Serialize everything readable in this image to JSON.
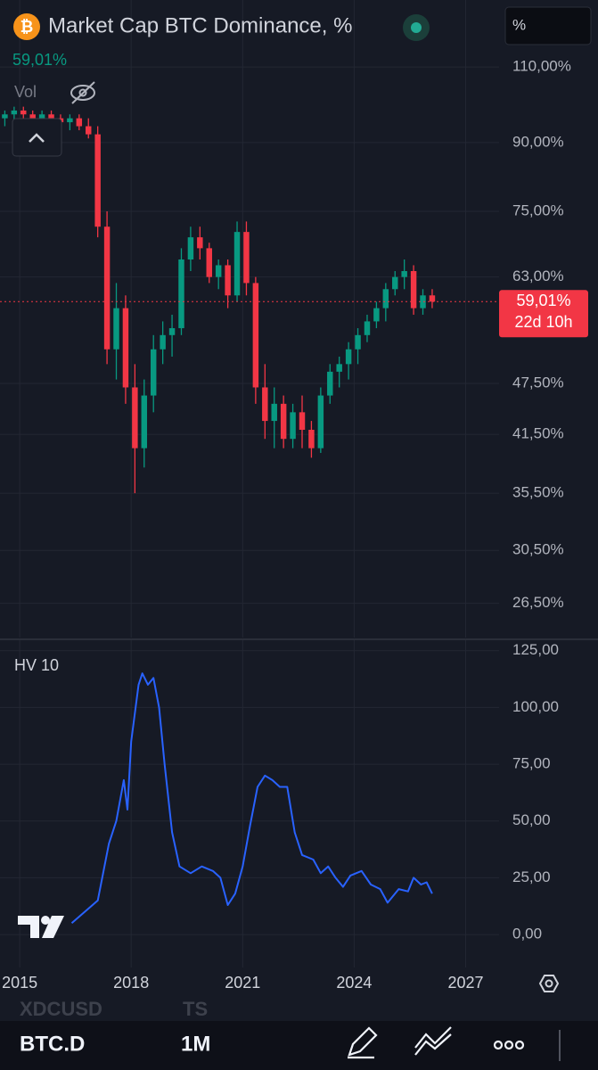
{
  "header": {
    "title": "Market Cap BTC Dominance, %",
    "scale_button": "%",
    "volume_label": "Vol"
  },
  "chart_data": [
    {
      "type": "candlestick",
      "x": [
        2014.6,
        2014.85,
        2015.1,
        2015.35,
        2015.6,
        2015.85,
        2016.1,
        2016.35,
        2016.6,
        2016.85,
        2017.1,
        2017.35,
        2017.6,
        2017.85,
        2018.1,
        2018.35,
        2018.6,
        2018.85,
        2019.1,
        2019.35,
        2019.6,
        2019.85,
        2020.1,
        2020.35,
        2020.6,
        2020.85,
        2021.1,
        2021.35,
        2021.6,
        2021.85,
        2022.1,
        2022.35,
        2022.6,
        2022.85,
        2023.1,
        2023.35,
        2023.6,
        2023.85,
        2024.1,
        2024.35,
        2024.6,
        2024.85,
        2025.1,
        2025.35,
        2025.6,
        2025.85,
        2026.1
      ],
      "open": [
        96,
        97,
        98,
        97,
        96,
        97,
        96,
        95,
        96,
        94,
        92,
        72,
        52,
        58,
        47,
        40,
        46,
        52,
        54,
        55,
        66,
        70,
        68,
        63,
        65,
        60,
        71,
        62,
        47,
        43,
        45,
        41,
        44,
        42,
        40,
        46,
        49,
        50,
        52,
        54,
        56,
        58,
        61,
        63,
        64,
        58,
        60
      ],
      "high": [
        98,
        99,
        99,
        98,
        98,
        98,
        97,
        97,
        97,
        96,
        94,
        75,
        62,
        60,
        50,
        48,
        54,
        56,
        57,
        68,
        72,
        72,
        69,
        66,
        66,
        73,
        73,
        63,
        50,
        47,
        46,
        45,
        46,
        43,
        47,
        50,
        51,
        53,
        55,
        57,
        59,
        62,
        64,
        66,
        65,
        61,
        61
      ],
      "low": [
        94,
        95,
        96,
        95,
        94,
        95,
        94,
        93,
        93,
        91,
        70,
        50,
        48,
        45,
        35.5,
        38,
        44,
        50,
        51,
        54,
        64,
        66,
        62,
        61,
        58,
        59,
        60,
        45,
        41,
        40,
        40,
        40,
        40,
        39,
        39.5,
        45,
        47,
        48,
        50,
        53,
        55,
        56,
        60,
        61,
        57,
        57,
        58
      ],
      "close": [
        97,
        98,
        97,
        96,
        97,
        96,
        95,
        96,
        94,
        92,
        72,
        52,
        58,
        47,
        40,
        46,
        52,
        54,
        55,
        66,
        70,
        68,
        63,
        65,
        60,
        71,
        62,
        47,
        43,
        45,
        41,
        44,
        42,
        40,
        46,
        49,
        50,
        52,
        54,
        56,
        58,
        61,
        63,
        64,
        58,
        60,
        59.01
      ],
      "up_color": "#089981",
      "down_color": "#f23645",
      "log_scale": true,
      "grid": true,
      "xlim": [
        2014.47,
        2027.9
      ],
      "ylim": [
        24.2,
        131.4
      ],
      "yticks": [
        {
          "value": 110,
          "label": "110,00%"
        },
        {
          "value": 90,
          "label": "90,00%"
        },
        {
          "value": 75,
          "label": "75,00%"
        },
        {
          "value": 63,
          "label": "63,00%"
        },
        {
          "value": 47.5,
          "label": "47,50%"
        },
        {
          "value": 41.5,
          "label": "41,50%"
        },
        {
          "value": 35.5,
          "label": "35,50%"
        },
        {
          "value": 30.5,
          "label": "30,50%"
        },
        {
          "value": 26.5,
          "label": "26,50%"
        }
      ],
      "last_price": {
        "value": 59.01,
        "label": "59,01%"
      },
      "countdown": "22d 10h"
    },
    {
      "type": "line",
      "title": "HV 10",
      "color": "#2962ff",
      "grid": true,
      "x": [
        2016.4,
        2017.1,
        2017.4,
        2017.6,
        2017.8,
        2017.9,
        2018.0,
        2018.2,
        2018.3,
        2018.45,
        2018.6,
        2018.75,
        2018.9,
        2019.1,
        2019.3,
        2019.6,
        2019.9,
        2020.2,
        2020.4,
        2020.6,
        2020.8,
        2021.0,
        2021.2,
        2021.4,
        2021.6,
        2021.8,
        2022.0,
        2022.2,
        2022.4,
        2022.6,
        2022.9,
        2023.1,
        2023.3,
        2023.5,
        2023.7,
        2023.9,
        2024.2,
        2024.45,
        2024.7,
        2024.9,
        2025.2,
        2025.45,
        2025.6,
        2025.8,
        2025.95,
        2026.1
      ],
      "values": [
        5,
        15,
        40,
        50,
        68,
        55,
        85,
        110,
        115,
        110,
        113,
        100,
        75,
        45,
        30,
        27,
        30,
        28,
        25,
        13,
        18,
        30,
        48,
        65,
        70,
        68,
        65,
        65,
        45,
        35,
        33,
        27,
        30,
        25,
        21,
        26,
        28,
        22,
        20,
        14,
        20,
        19,
        25,
        22,
        23,
        18
      ],
      "xlim": [
        2014.47,
        2027.9
      ],
      "ylim": [
        -14.5,
        130
      ],
      "yticks": [
        {
          "value": 125,
          "label": "125,00"
        },
        {
          "value": 100,
          "label": "100,00"
        },
        {
          "value": 75,
          "label": "75,00"
        },
        {
          "value": 50,
          "label": "50,00"
        },
        {
          "value": 25,
          "label": "25,00"
        },
        {
          "value": 0,
          "label": "0,00"
        }
      ],
      "xticks": [
        2015,
        2018,
        2021,
        2024,
        2027
      ]
    }
  ],
  "footer": {
    "hidden_symbol": "XDCUSD",
    "hidden_type": "TS",
    "symbol": "BTC.D",
    "interval": "1M"
  }
}
